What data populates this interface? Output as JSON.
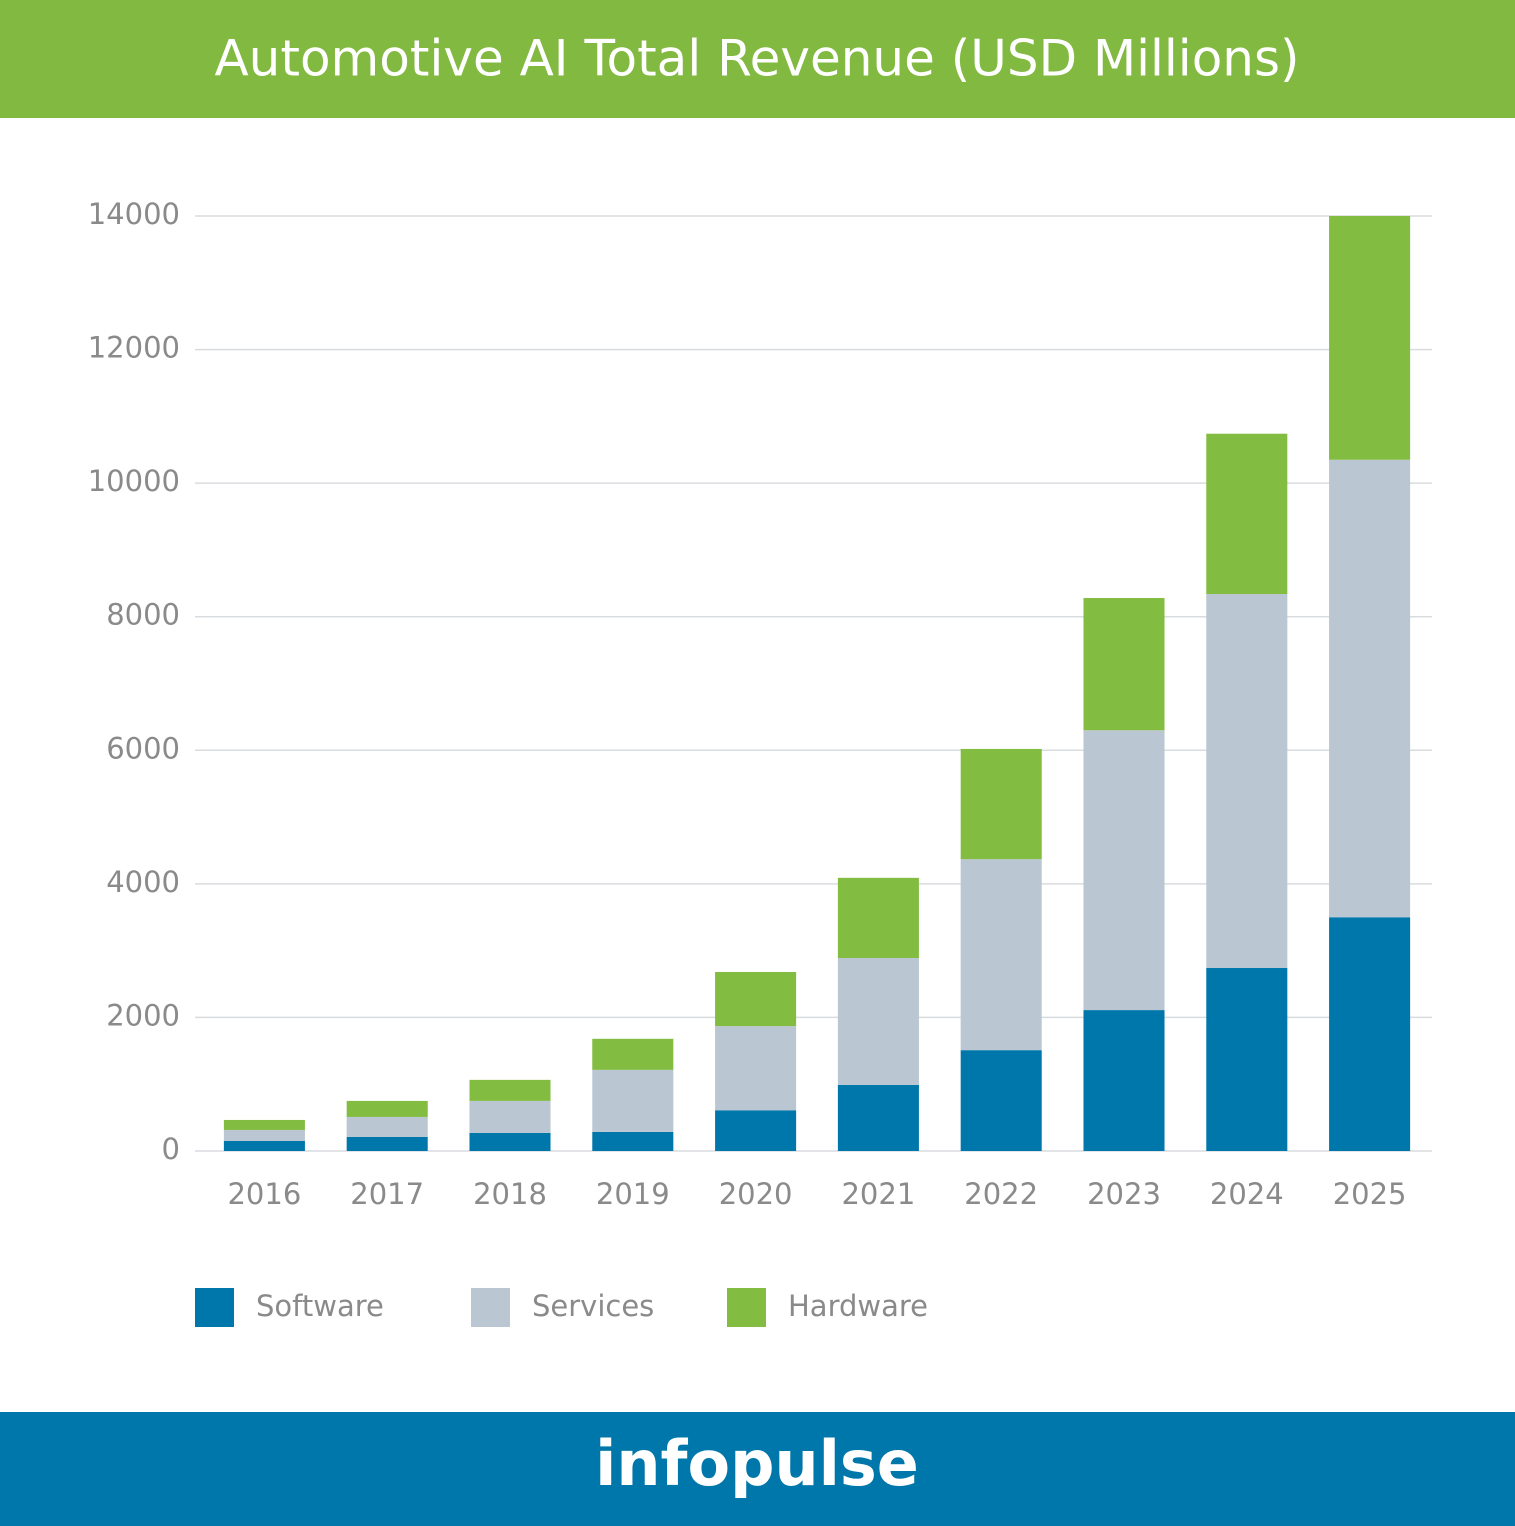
{
  "chart_data": {
    "type": "stacked_bar",
    "title": "Automotive AI Total Revenue (USD Millions)",
    "categories": [
      "2016",
      "2017",
      "2018",
      "2019",
      "2020",
      "2021",
      "2022",
      "2023",
      "2024",
      "2025"
    ],
    "series": [
      {
        "name": "Software",
        "color": "#0077aa",
        "values": [
          150,
          210,
          270,
          285,
          610,
          990,
          1510,
          2110,
          2740,
          3500
        ]
      },
      {
        "name": "Services",
        "color": "#bac6d1",
        "values": [
          165,
          300,
          480,
          930,
          1260,
          1900,
          2860,
          4190,
          5600,
          6850
        ]
      },
      {
        "name": "Hardware",
        "color": "#82bc41",
        "values": [
          150,
          240,
          315,
          465,
          810,
          1200,
          1650,
          1980,
          2400,
          3650
        ]
      }
    ],
    "ylim": [
      0,
      14000
    ],
    "yticks": [
      0,
      2000,
      4000,
      6000,
      8000,
      10000,
      12000,
      14000
    ],
    "grid": true
  },
  "footer": {
    "logo": "infopulse"
  }
}
